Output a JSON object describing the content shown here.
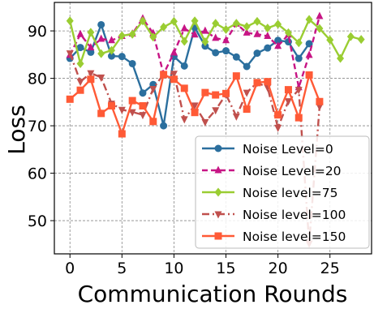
{
  "chart_data": {
    "type": "line",
    "title": "",
    "xlabel": "Communication Rounds",
    "ylabel": "Loss",
    "xlim": [
      -1.5,
      29
    ],
    "ylim": [
      43,
      96
    ],
    "xticks": [
      0,
      5,
      10,
      15,
      20,
      25
    ],
    "yticks": [
      50,
      60,
      70,
      80,
      90
    ],
    "grid": true,
    "legend_position": "lower-right",
    "series": [
      {
        "name": "Noise Level=0",
        "color": "#2b6f9e",
        "linestyle": "solid",
        "marker": "circle",
        "x": [
          0,
          1,
          2,
          3,
          4,
          5,
          6,
          7,
          8,
          9,
          10,
          11,
          12,
          13,
          14,
          15,
          16,
          17,
          18,
          19,
          20,
          21,
          22,
          23
        ],
        "y": [
          84.2,
          86.5,
          85.5,
          91.3,
          84.7,
          84.6,
          83.1,
          76.9,
          78.7,
          70.0,
          84.6,
          82.6,
          90.7,
          86.8,
          85.4,
          85.8,
          84.5,
          82.5,
          85.3,
          86.4,
          88.0,
          87.7,
          84.2,
          87.3
        ]
      },
      {
        "name": "Noise Level=20",
        "color": "#c71585",
        "linestyle": "dashed",
        "marker": "triangle-up",
        "x": [
          0,
          1,
          2,
          3,
          4,
          5,
          6,
          7,
          8,
          9,
          10,
          11,
          12,
          13,
          14,
          15,
          16,
          17,
          18,
          19,
          20,
          21,
          22,
          23,
          24
        ],
        "y": [
          84.9,
          89.3,
          86.5,
          88.3,
          88.0,
          88.9,
          89.4,
          92.6,
          89.5,
          80.9,
          85.4,
          90.5,
          89.2,
          90.0,
          88.5,
          88.0,
          91.5,
          89.6,
          89.3,
          88.9,
          86.8,
          89.2,
          78.1,
          84.9,
          93.1
        ]
      },
      {
        "name": "Noise level=75",
        "color": "#9acd32",
        "linestyle": "solid",
        "marker": "diamond",
        "x": [
          0,
          1,
          2,
          3,
          4,
          5,
          6,
          7,
          8,
          9,
          10,
          11,
          12,
          13,
          14,
          15,
          16,
          17,
          18,
          19,
          20,
          21,
          22,
          23,
          24,
          25,
          26,
          27,
          28
        ],
        "y": [
          92.1,
          83.1,
          89.7,
          85.2,
          85.9,
          89.0,
          89.3,
          92.1,
          88.7,
          90.8,
          92.0,
          87.8,
          92.1,
          87.7,
          91.6,
          90.3,
          91.6,
          90.9,
          92.0,
          90.6,
          91.4,
          89.6,
          87.5,
          92.4,
          90.5,
          88.1,
          84.2,
          88.8,
          88.2
        ]
      },
      {
        "name": "Noise level=100",
        "color": "#c0504d",
        "linestyle": "dashdot",
        "marker": "triangle-down",
        "x": [
          0,
          1,
          2,
          3,
          4,
          5,
          6,
          7,
          8,
          9,
          10,
          11,
          12,
          13,
          14,
          15,
          16,
          17,
          18,
          19,
          20,
          21,
          22,
          23,
          24
        ],
        "y": [
          85.3,
          79.3,
          81.1,
          80.2,
          74.7,
          73.4,
          72.9,
          72.3,
          77.8,
          80.9,
          81.0,
          71.4,
          74.3,
          70.8,
          73.3,
          76.6,
          72.0,
          77.0,
          79.1,
          78.1,
          69.6,
          75.2,
          77.6,
          45.2,
          74.1
        ]
      },
      {
        "name": "Noise level=150",
        "color": "#ff5a36",
        "linestyle": "solid",
        "marker": "square",
        "x": [
          0,
          1,
          2,
          3,
          4,
          5,
          6,
          7,
          8,
          9,
          10,
          11,
          12,
          13,
          14,
          15,
          16,
          17,
          18,
          19,
          20,
          21,
          22,
          23,
          24
        ],
        "y": [
          75.6,
          77.5,
          79.8,
          72.6,
          74.2,
          68.3,
          75.3,
          74.2,
          70.9,
          80.8,
          79.8,
          77.9,
          72.8,
          77.0,
          76.5,
          76.8,
          80.5,
          73.5,
          79.1,
          79.3,
          72.3,
          77.6,
          71.7,
          80.7,
          75.1
        ]
      }
    ]
  }
}
